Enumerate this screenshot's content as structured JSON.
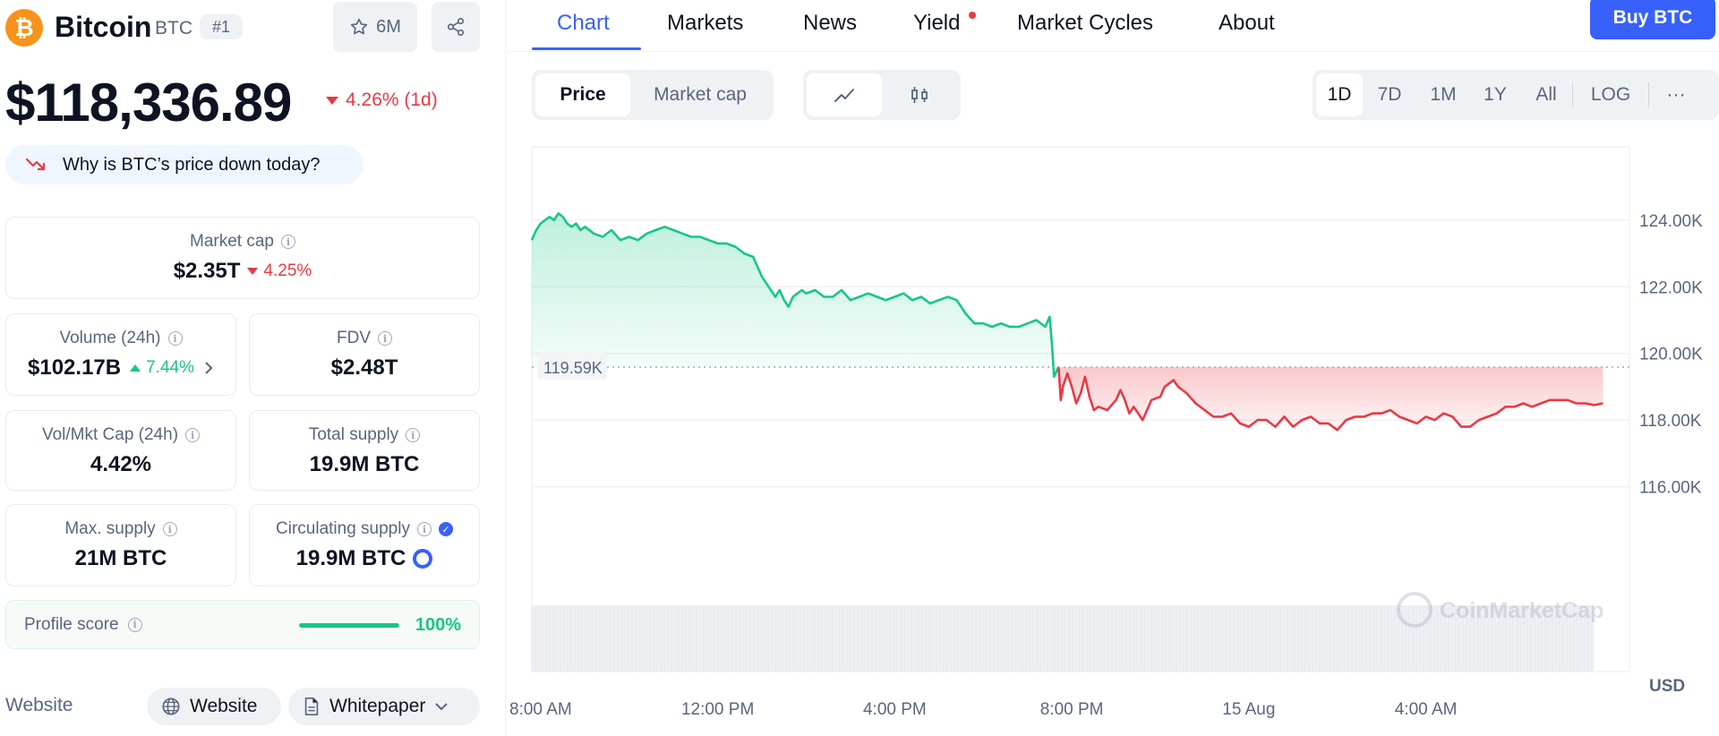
{
  "coin": {
    "logo_glyph": "₿",
    "name": "Bitcoin",
    "symbol": "BTC",
    "rank": "#1",
    "watchlist_count": "6M",
    "price": "$118,336.89",
    "change_1d": "4.26% (1d)",
    "why_text": "Why is BTC’s price down today?"
  },
  "stats": {
    "market_cap": {
      "label": "Market cap",
      "value": "$2.35T",
      "change": "4.25%"
    },
    "volume": {
      "label": "Volume (24h)",
      "value": "$102.17B",
      "change": "7.44%"
    },
    "fdv": {
      "label": "FDV",
      "value": "$2.48T"
    },
    "vol_mkt_cap": {
      "label": "Vol/Mkt Cap (24h)",
      "value": "4.42%"
    },
    "total_supply": {
      "label": "Total supply",
      "value": "19.9M BTC"
    },
    "max_supply": {
      "label": "Max. supply",
      "value": "21M BTC"
    },
    "circulating_supply": {
      "label": "Circulating supply",
      "value": "19.9M BTC"
    }
  },
  "profile": {
    "label": "Profile score",
    "value": "100%",
    "fraction": 1.0
  },
  "links": {
    "label": "Website",
    "website": "Website",
    "whitepaper": "Whitepaper"
  },
  "nav": {
    "tabs": [
      "Chart",
      "Markets",
      "News",
      "Yield",
      "Market Cycles",
      "About"
    ],
    "active": "Chart",
    "buy_label": "Buy BTC"
  },
  "chart_controls": {
    "metric_tabs": [
      "Price",
      "Market cap"
    ],
    "active_metric": "Price",
    "chart_styles": [
      "line-chart-icon",
      "candlestick-icon"
    ],
    "active_style": "line-chart-icon",
    "ranges": [
      "1D",
      "7D",
      "1M",
      "1Y",
      "All"
    ],
    "active_range": "1D",
    "scale_label": "LOG",
    "more_label": "···"
  },
  "colors": {
    "accent": "#3861fb",
    "up": "#16c784",
    "down": "#ea3943",
    "bitcoin": "#f7931a"
  },
  "chart_data": {
    "type": "area",
    "title": "",
    "xlabel": "",
    "ylabel": "",
    "currency_label": "USD",
    "watermark": "CoinMarketCap",
    "reference": {
      "value": 119.59,
      "label": "119.59K"
    },
    "y_ticks": [
      116,
      118,
      120,
      122,
      124
    ],
    "y_tick_labels": [
      "116.00K",
      "118.00K",
      "120.00K",
      "122.00K",
      "124.00K"
    ],
    "ylim": [
      114.0,
      126.2
    ],
    "x_ticks": [
      {
        "t": 1.0,
        "label": "8:00 AM"
      },
      {
        "t": 5.0,
        "label": "12:00 PM"
      },
      {
        "t": 9.0,
        "label": "4:00 PM"
      },
      {
        "t": 13.0,
        "label": "8:00 PM"
      },
      {
        "t": 17.0,
        "label": "15 Aug"
      },
      {
        "t": 21.0,
        "label": "4:00 AM"
      }
    ],
    "xlim": [
      0.8,
      25.6
    ],
    "grid": true,
    "series": [
      {
        "values": [
          [
            0.8,
            123.4
          ],
          [
            0.9,
            123.7
          ],
          [
            1.0,
            123.9
          ],
          [
            1.1,
            124.0
          ],
          [
            1.2,
            124.1
          ],
          [
            1.3,
            124.0
          ],
          [
            1.4,
            124.2
          ],
          [
            1.5,
            124.1
          ],
          [
            1.6,
            123.9
          ],
          [
            1.7,
            123.8
          ],
          [
            1.8,
            123.9
          ],
          [
            1.9,
            123.7
          ],
          [
            2.0,
            123.8
          ],
          [
            2.2,
            123.6
          ],
          [
            2.4,
            123.5
          ],
          [
            2.6,
            123.7
          ],
          [
            2.8,
            123.4
          ],
          [
            3.0,
            123.5
          ],
          [
            3.2,
            123.4
          ],
          [
            3.4,
            123.6
          ],
          [
            3.6,
            123.7
          ],
          [
            3.8,
            123.8
          ],
          [
            4.0,
            123.7
          ],
          [
            4.2,
            123.6
          ],
          [
            4.4,
            123.5
          ],
          [
            4.6,
            123.5
          ],
          [
            4.8,
            123.4
          ],
          [
            5.0,
            123.3
          ],
          [
            5.2,
            123.3
          ],
          [
            5.4,
            123.2
          ],
          [
            5.6,
            123.0
          ],
          [
            5.8,
            122.9
          ],
          [
            5.9,
            122.6
          ],
          [
            6.0,
            122.3
          ],
          [
            6.1,
            122.1
          ],
          [
            6.2,
            121.9
          ],
          [
            6.3,
            121.7
          ],
          [
            6.4,
            121.9
          ],
          [
            6.5,
            121.6
          ],
          [
            6.6,
            121.4
          ],
          [
            6.7,
            121.7
          ],
          [
            6.9,
            121.9
          ],
          [
            7.0,
            121.8
          ],
          [
            7.2,
            121.9
          ],
          [
            7.4,
            121.7
          ],
          [
            7.6,
            121.7
          ],
          [
            7.8,
            121.9
          ],
          [
            8.0,
            121.6
          ],
          [
            8.2,
            121.7
          ],
          [
            8.4,
            121.8
          ],
          [
            8.6,
            121.7
          ],
          [
            8.8,
            121.6
          ],
          [
            9.0,
            121.7
          ],
          [
            9.2,
            121.8
          ],
          [
            9.4,
            121.6
          ],
          [
            9.6,
            121.7
          ],
          [
            9.8,
            121.5
          ],
          [
            10.0,
            121.6
          ],
          [
            10.2,
            121.7
          ],
          [
            10.4,
            121.6
          ],
          [
            10.6,
            121.2
          ],
          [
            10.8,
            120.9
          ],
          [
            11.0,
            120.9
          ],
          [
            11.2,
            120.8
          ],
          [
            11.4,
            120.9
          ],
          [
            11.6,
            120.8
          ],
          [
            11.8,
            120.8
          ],
          [
            12.0,
            120.9
          ],
          [
            12.2,
            121.0
          ],
          [
            12.4,
            120.8
          ],
          [
            12.5,
            121.1
          ],
          [
            12.55,
            120.3
          ],
          [
            12.6,
            119.3
          ],
          [
            12.7,
            119.6
          ]
        ]
      },
      {
        "values": [
          [
            12.7,
            119.6
          ],
          [
            12.75,
            118.6
          ],
          [
            12.8,
            119.0
          ],
          [
            12.9,
            119.4
          ],
          [
            13.0,
            119.0
          ],
          [
            13.1,
            118.5
          ],
          [
            13.2,
            118.8
          ],
          [
            13.3,
            119.3
          ],
          [
            13.4,
            118.7
          ],
          [
            13.5,
            118.3
          ],
          [
            13.6,
            118.4
          ],
          [
            13.8,
            118.3
          ],
          [
            14.0,
            118.6
          ],
          [
            14.1,
            118.9
          ],
          [
            14.2,
            118.6
          ],
          [
            14.3,
            118.2
          ],
          [
            14.4,
            118.4
          ],
          [
            14.5,
            118.2
          ],
          [
            14.6,
            118.0
          ],
          [
            14.7,
            118.3
          ],
          [
            14.8,
            118.6
          ],
          [
            15.0,
            118.7
          ],
          [
            15.1,
            119.0
          ],
          [
            15.2,
            119.1
          ],
          [
            15.3,
            119.2
          ],
          [
            15.4,
            119.0
          ],
          [
            15.6,
            118.8
          ],
          [
            15.8,
            118.5
          ],
          [
            16.0,
            118.3
          ],
          [
            16.2,
            118.1
          ],
          [
            16.4,
            118.1
          ],
          [
            16.6,
            118.2
          ],
          [
            16.8,
            117.9
          ],
          [
            17.0,
            117.8
          ],
          [
            17.2,
            118.0
          ],
          [
            17.4,
            118.0
          ],
          [
            17.6,
            117.8
          ],
          [
            17.8,
            118.1
          ],
          [
            18.0,
            117.8
          ],
          [
            18.2,
            118.0
          ],
          [
            18.4,
            118.1
          ],
          [
            18.6,
            117.9
          ],
          [
            18.8,
            117.9
          ],
          [
            19.0,
            117.7
          ],
          [
            19.2,
            118.0
          ],
          [
            19.4,
            118.1
          ],
          [
            19.6,
            118.1
          ],
          [
            19.8,
            118.2
          ],
          [
            20.0,
            118.2
          ],
          [
            20.2,
            118.3
          ],
          [
            20.4,
            118.1
          ],
          [
            20.6,
            118.0
          ],
          [
            20.8,
            117.9
          ],
          [
            21.0,
            118.1
          ],
          [
            21.2,
            118.0
          ],
          [
            21.4,
            118.2
          ],
          [
            21.6,
            118.1
          ],
          [
            21.8,
            117.8
          ],
          [
            22.0,
            117.8
          ],
          [
            22.2,
            118.0
          ],
          [
            22.4,
            118.1
          ],
          [
            22.6,
            118.2
          ],
          [
            22.8,
            118.4
          ],
          [
            23.0,
            118.4
          ],
          [
            23.2,
            118.5
          ],
          [
            23.4,
            118.4
          ],
          [
            23.6,
            118.5
          ],
          [
            23.8,
            118.6
          ],
          [
            24.0,
            118.6
          ],
          [
            24.2,
            118.6
          ],
          [
            24.4,
            118.5
          ],
          [
            24.6,
            118.5
          ],
          [
            24.8,
            118.45
          ],
          [
            25.0,
            118.5
          ]
        ]
      }
    ]
  }
}
